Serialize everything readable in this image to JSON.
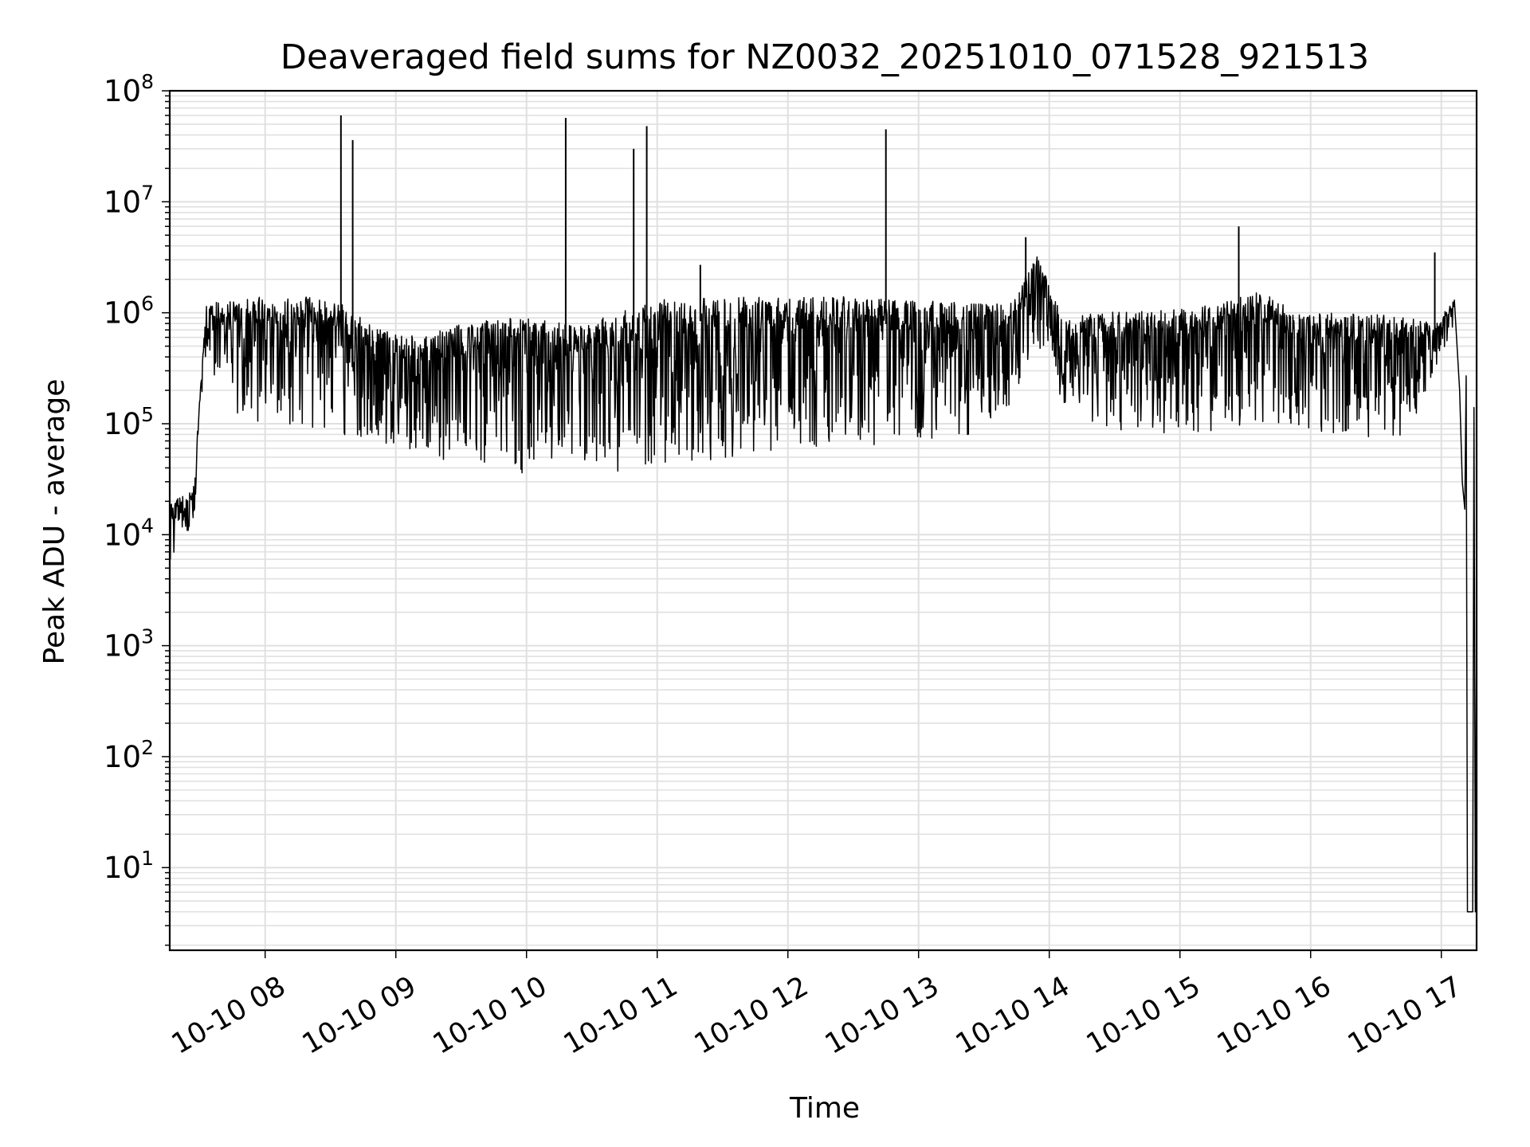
{
  "chart_data": {
    "type": "line",
    "title": "Deaveraged field sums for NZ0032_20251010_071528_921513",
    "xlabel": "Time",
    "ylabel": "Peak ADU - average",
    "yscale": "log",
    "ylim": [
      1.8,
      100000000
    ],
    "xlim_hours": [
      7.27,
      17.27
    ],
    "grid": true,
    "x_ticks": [
      {
        "hour": 8,
        "label": "10-10 08"
      },
      {
        "hour": 9,
        "label": "10-10 09"
      },
      {
        "hour": 10,
        "label": "10-10 10"
      },
      {
        "hour": 11,
        "label": "10-10 11"
      },
      {
        "hour": 12,
        "label": "10-10 12"
      },
      {
        "hour": 13,
        "label": "10-10 13"
      },
      {
        "hour": 14,
        "label": "10-10 14"
      },
      {
        "hour": 15,
        "label": "10-10 15"
      },
      {
        "hour": 16,
        "label": "10-10 16"
      },
      {
        "hour": 17,
        "label": "10-10 17"
      }
    ],
    "y_ticks": [
      {
        "exp": 1,
        "base": "10",
        "sup": "1"
      },
      {
        "exp": 2,
        "base": "10",
        "sup": "2"
      },
      {
        "exp": 3,
        "base": "10",
        "sup": "3"
      },
      {
        "exp": 4,
        "base": "10",
        "sup": "4"
      },
      {
        "exp": 5,
        "base": "10",
        "sup": "5"
      },
      {
        "exp": 6,
        "base": "10",
        "sup": "6"
      },
      {
        "exp": 7,
        "base": "10",
        "sup": "7"
      },
      {
        "exp": 8,
        "base": "10",
        "sup": "8"
      }
    ],
    "line_color": "#000000",
    "grid_color": "#e0e0e0",
    "series": [
      {
        "name": "Peak ADU - average",
        "envelope": {
          "hour": [
            7.28,
            7.45,
            7.55,
            7.7,
            8.0,
            8.3,
            8.6,
            8.9,
            9.2,
            9.5,
            9.8,
            10.1,
            10.4,
            10.7,
            11.0,
            11.3,
            11.6,
            11.9,
            12.2,
            12.5,
            12.8,
            13.1,
            13.4,
            13.7,
            13.9,
            14.1,
            14.4,
            14.7,
            15.0,
            15.3,
            15.6,
            15.9,
            16.2,
            16.5,
            16.75,
            16.95,
            17.1,
            17.15,
            17.2,
            17.27
          ],
          "upper": [
            20000,
            25000,
            1200000,
            1300000,
            1400000,
            1400000,
            1200000,
            700000,
            600000,
            800000,
            900000,
            900000,
            800000,
            1000000,
            1300000,
            1400000,
            1400000,
            1400000,
            1400000,
            1400000,
            1300000,
            1300000,
            1200000,
            1200000,
            3500000,
            900000,
            1000000,
            1100000,
            1100000,
            1200000,
            1600000,
            1000000,
            1000000,
            1000000,
            900000,
            800000,
            1300000,
            900000,
            40000,
            4
          ],
          "lower": [
            6000,
            12000,
            450000,
            130000,
            100000,
            90000,
            80000,
            60000,
            50000,
            40000,
            35000,
            35000,
            45000,
            35000,
            40000,
            45000,
            50000,
            55000,
            60000,
            60000,
            65000,
            70000,
            80000,
            150000,
            500000,
            150000,
            90000,
            80000,
            75000,
            80000,
            90000,
            85000,
            80000,
            75000,
            80000,
            300000,
            800000,
            30000,
            4,
            4
          ]
        },
        "spikes": [
          {
            "hour": 8.58,
            "value": 60000000
          },
          {
            "hour": 8.67,
            "value": 36000000
          },
          {
            "hour": 10.3,
            "value": 57000000
          },
          {
            "hour": 10.82,
            "value": 30000000
          },
          {
            "hour": 10.92,
            "value": 48000000
          },
          {
            "hour": 12.75,
            "value": 45000000
          },
          {
            "hour": 13.82,
            "value": 4800000
          },
          {
            "hour": 15.45,
            "value": 6000000
          },
          {
            "hour": 16.95,
            "value": 3500000
          },
          {
            "hour": 11.33,
            "value": 2700000
          }
        ],
        "tail": [
          {
            "hour": 17.1,
            "value": 1300000
          },
          {
            "hour": 17.14,
            "value": 200000
          },
          {
            "hour": 17.16,
            "value": 30000
          },
          {
            "hour": 17.18,
            "value": 17000
          },
          {
            "hour": 17.19,
            "value": 270000
          },
          {
            "hour": 17.2,
            "value": 4
          },
          {
            "hour": 17.24,
            "value": 4
          },
          {
            "hour": 17.25,
            "value": 140000
          },
          {
            "hour": 17.26,
            "value": 4
          },
          {
            "hour": 17.27,
            "value": 1500
          }
        ]
      }
    ]
  }
}
